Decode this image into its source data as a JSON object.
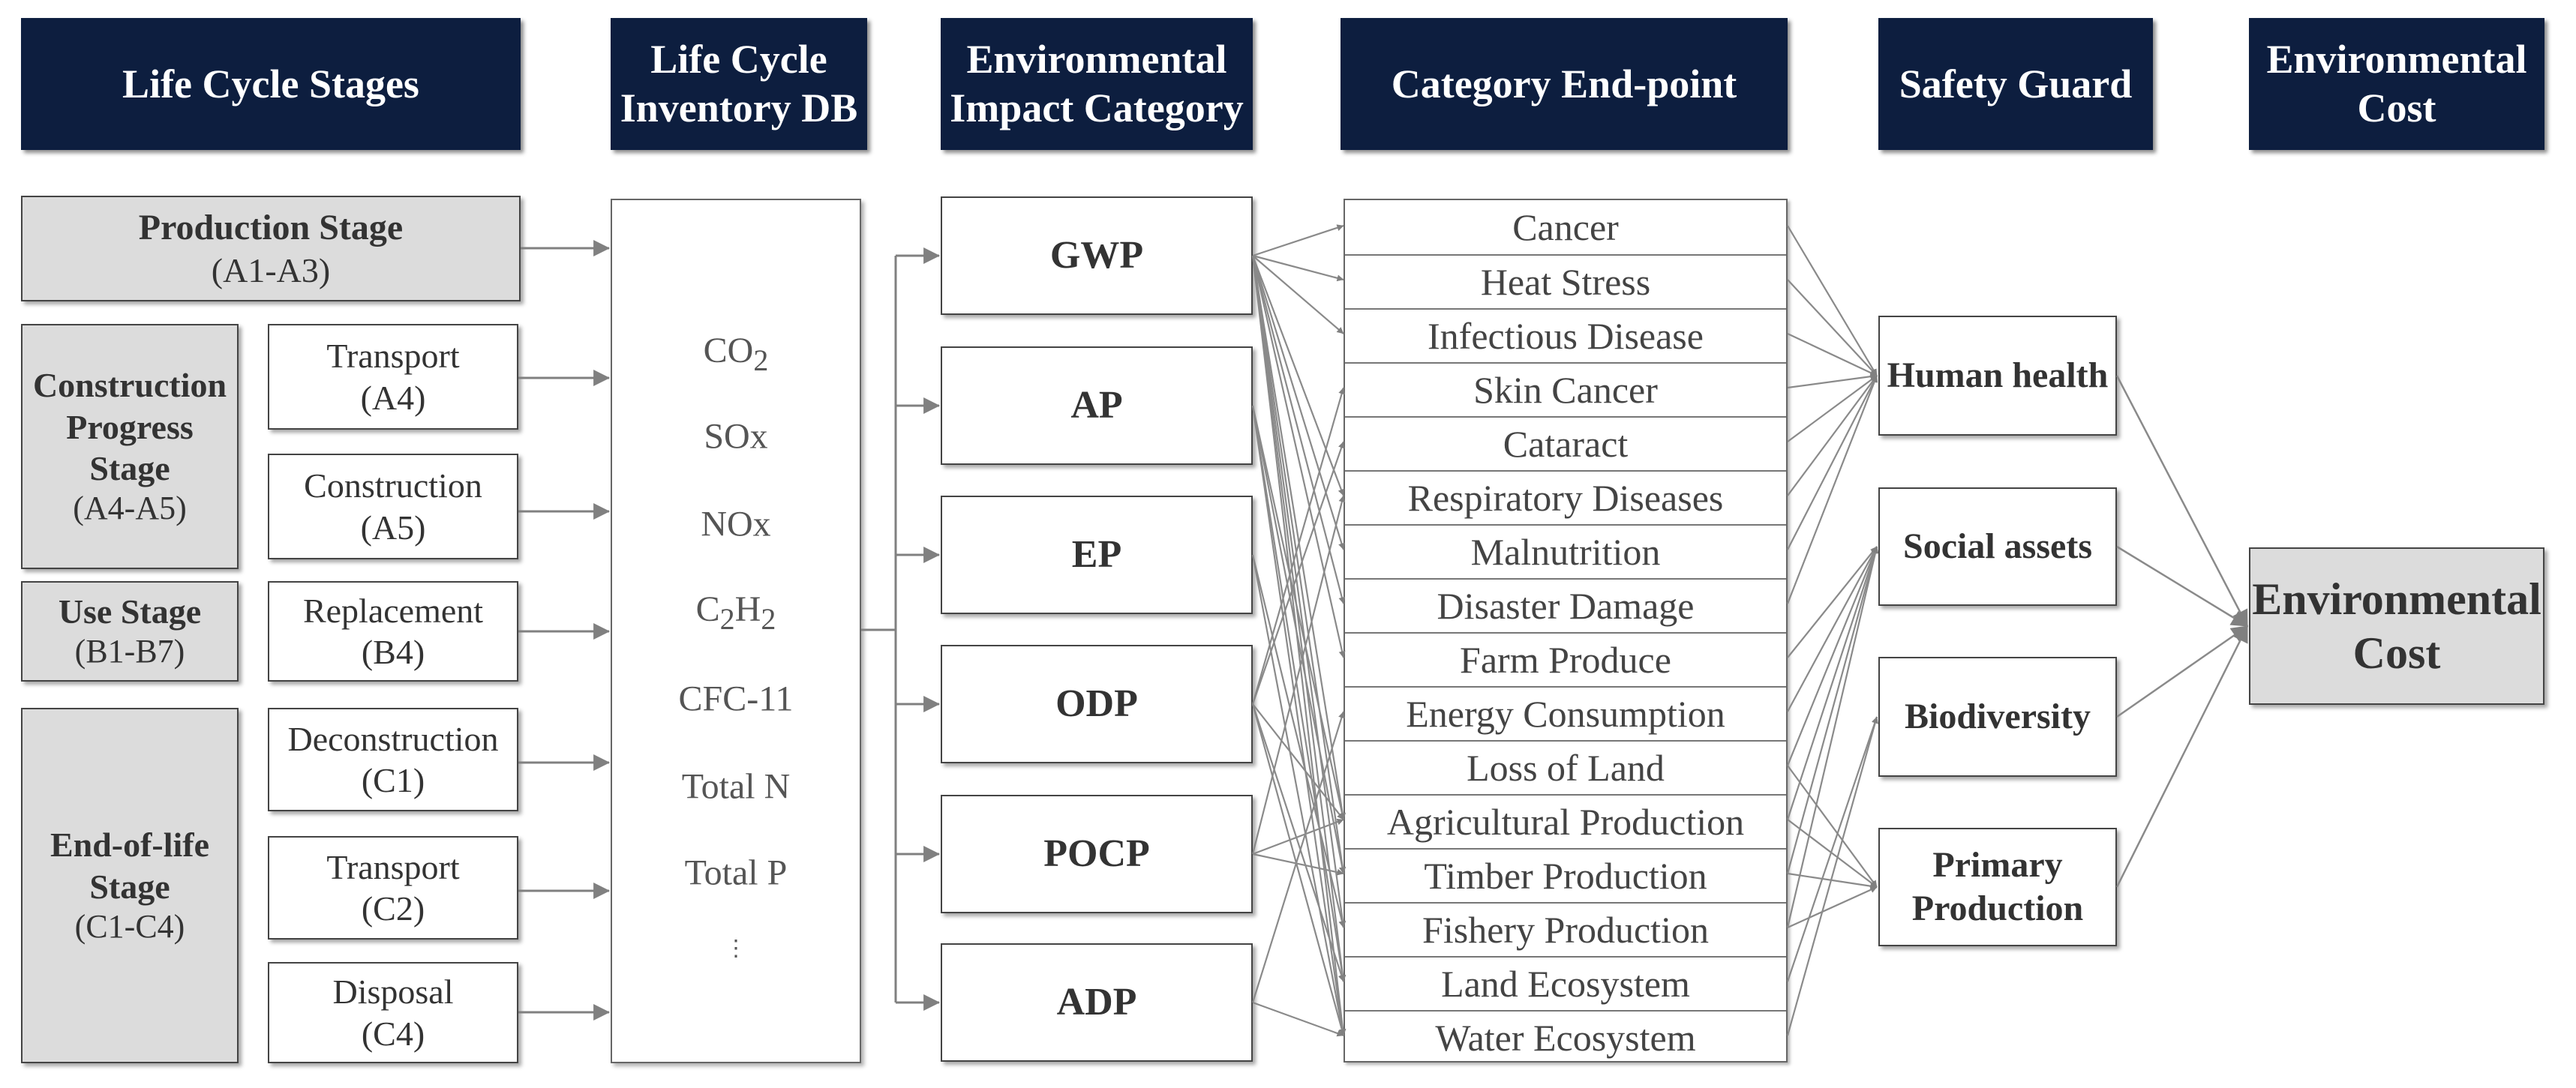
{
  "headers": [
    {
      "lines": [
        "Life Cycle Stages"
      ]
    },
    {
      "lines": [
        "Life Cycle",
        "Inventory DB"
      ]
    },
    {
      "lines": [
        "Environmental",
        "Impact Category"
      ]
    },
    {
      "lines": [
        "Category End-point"
      ]
    },
    {
      "lines": [
        "Safety Guard"
      ]
    },
    {
      "lines": [
        "Environmental",
        "Cost"
      ]
    }
  ],
  "stages": {
    "production": {
      "title": "Production Stage",
      "code": "(A1-A3)"
    },
    "construction": {
      "title_lines": [
        "Construction",
        "Progress",
        "Stage"
      ],
      "code": "(A4-A5)"
    },
    "use": {
      "title": "Use Stage",
      "code": "(B1-B7)"
    },
    "eol": {
      "title_lines": [
        "End-of-life",
        "Stage"
      ],
      "code": "(C1-C4)"
    }
  },
  "processes": [
    {
      "label": "Transport",
      "code": "(A4)"
    },
    {
      "label": "Construction",
      "code": "(A5)"
    },
    {
      "label": "Replacement",
      "code": "(B4)"
    },
    {
      "label": "Deconstruction",
      "code": "(C1)"
    },
    {
      "label": "Transport",
      "code": "(C2)"
    },
    {
      "label": "Disposal",
      "code": "(C4)"
    }
  ],
  "inventory": [
    {
      "base": "CO",
      "sub": "2"
    },
    {
      "base": "SOx"
    },
    {
      "base": "NOx"
    },
    {
      "parts": [
        {
          "t": "C"
        },
        {
          "s": "2"
        },
        {
          "t": "H"
        },
        {
          "s": "2"
        }
      ]
    },
    {
      "base": "CFC-11"
    },
    {
      "base": "Total N"
    },
    {
      "base": "Total P"
    },
    {
      "base": "⋮"
    }
  ],
  "impact_categories": [
    "GWP",
    "AP",
    "EP",
    "ODP",
    "POCP",
    "ADP"
  ],
  "endpoints": [
    "Cancer",
    "Heat Stress",
    "Infectious Disease",
    "Skin Cancer",
    "Cataract",
    "Respiratory Diseases",
    "Malnutrition",
    "Disaster Damage",
    "Farm Produce",
    "Energy Consumption",
    "Loss of Land",
    "Agricultural Production",
    "Timber Production",
    "Fishery Production",
    "Land Ecosystem",
    "Water Ecosystem"
  ],
  "safeguards": [
    {
      "lines": [
        "Human health"
      ]
    },
    {
      "lines": [
        "Social assets"
      ]
    },
    {
      "lines": [
        "Biodiversity"
      ]
    },
    {
      "lines": [
        "Primary",
        "Production"
      ]
    }
  ],
  "cost": {
    "lines": [
      "Environmental",
      "Cost"
    ]
  },
  "colors": {
    "header_bg": "#0d1e3f",
    "header_text": "#ffffff",
    "stage_fill": "#dcdcdc",
    "arrow": "#808080"
  }
}
